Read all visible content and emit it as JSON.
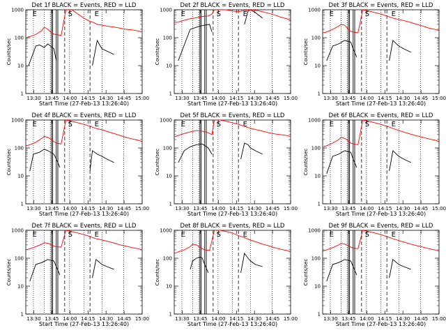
{
  "figure": {
    "xlabel": "Start Time (27-Feb-13 13:26:40)",
    "ylabel": "Counts/sec",
    "xticks": [
      "13:30",
      "13:45",
      "14:00",
      "14:15",
      "14:30",
      "14:45",
      "15:00"
    ],
    "yticks": [
      "1",
      "10",
      "100",
      "1000"
    ],
    "colors": {
      "events": "#000000",
      "lld": "#ff0000"
    }
  },
  "chart_data": [
    {
      "type": "line",
      "title": "Det 1f BLACK = Events, RED = LLD",
      "xlabel": "Start Time (27-Feb-13 13:26:40)",
      "ylabel": "Counts/sec",
      "ylog": true,
      "ylim": [
        1,
        1000
      ],
      "xlim_minutes": [
        -3.33,
        93.33
      ],
      "markers": [
        "E",
        "S",
        "E"
      ],
      "series": [
        {
          "name": "Events",
          "color": "#000000",
          "x": [
            -20,
            -8,
            -1,
            5,
            8,
            12,
            15,
            20,
            22,
            33,
            40,
            43,
            45,
            52,
            56,
            58,
            60,
            66,
            70
          ],
          "y": [
            null,
            null,
            10,
            50,
            55,
            45,
            60,
            40,
            15,
            null,
            null,
            null,
            null,
            10,
            80,
            55,
            40,
            30,
            25
          ]
        },
        {
          "name": "LLD",
          "color": "#ff0000",
          "x": [
            -3,
            0,
            5,
            10,
            12,
            15,
            18,
            20,
            22,
            26,
            30,
            35,
            40,
            45,
            50,
            53,
            56,
            60,
            64,
            70,
            75,
            80,
            85,
            90,
            93
          ],
          "y": [
            100,
            110,
            130,
            180,
            240,
            200,
            150,
            135,
            130,
            120,
            1000,
            1000,
            700,
            500,
            380,
            350,
            300,
            280,
            260,
            240,
            220,
            200,
            190,
            175,
            160
          ]
        }
      ]
    },
    {
      "type": "line",
      "title": "Det 2f BLACK = Events, RED = LLD",
      "xlabel": "Start Time (27-Feb-13 13:26:40)",
      "ylabel": "Counts/sec",
      "ylog": true,
      "ylim": [
        1,
        1000
      ],
      "xlim_minutes": [
        -3.33,
        93.33
      ],
      "markers": [
        "E",
        "S",
        "E"
      ],
      "series": [
        {
          "name": "Events",
          "color": "#000000",
          "x": [
            -20,
            -10,
            0,
            10,
            18,
            22,
            26,
            28,
            30,
            33,
            40,
            45,
            50,
            52,
            55,
            58,
            60,
            64,
            70
          ],
          "y": [
            null,
            null,
            15,
            200,
            260,
            280,
            300,
            160,
            null,
            null,
            null,
            null,
            null,
            null,
            300,
            900,
            1000,
            800,
            500
          ]
        },
        {
          "name": "LLD",
          "color": "#ff0000",
          "x": [
            -3,
            0,
            5,
            10,
            15,
            20,
            25,
            28,
            30,
            33,
            37,
            40,
            45,
            50,
            55,
            60,
            65,
            70,
            75,
            80,
            85,
            90,
            93
          ],
          "y": [
            350,
            360,
            420,
            480,
            520,
            580,
            600,
            700,
            1000,
            1000,
            1000,
            1000,
            900,
            850,
            950,
            1000,
            950,
            850,
            750,
            650,
            550,
            480,
            430
          ]
        }
      ]
    },
    {
      "type": "line",
      "title": "Det 3f BLACK = Events, RED = LLD",
      "xlabel": "Start Time (27-Feb-13 13:26:40)",
      "ylabel": "Counts/sec",
      "ylog": true,
      "ylim": [
        1,
        1000
      ],
      "xlim_minutes": [
        -3.33,
        93.33
      ],
      "markers": [
        "E",
        "S",
        "E"
      ],
      "series": [
        {
          "name": "Events",
          "color": "#000000",
          "x": [
            -20,
            0,
            5,
            10,
            15,
            20,
            22,
            25,
            40,
            48,
            52,
            55,
            58,
            60,
            64,
            70
          ],
          "y": [
            null,
            15,
            50,
            60,
            80,
            70,
            40,
            20,
            null,
            null,
            15,
            80,
            60,
            50,
            40,
            30
          ]
        },
        {
          "name": "LLD",
          "color": "#ff0000",
          "x": [
            -3,
            0,
            5,
            10,
            12,
            15,
            18,
            20,
            22,
            26,
            30,
            35,
            40,
            45,
            50,
            55,
            60,
            65,
            70,
            75,
            80,
            85,
            90,
            93
          ],
          "y": [
            150,
            160,
            200,
            260,
            300,
            280,
            200,
            170,
            160,
            150,
            1000,
            900,
            800,
            700,
            600,
            500,
            450,
            400,
            350,
            300,
            260,
            220,
            200,
            180
          ]
        }
      ]
    },
    {
      "type": "line",
      "title": "Det 4f BLACK = Events, RED = LLD",
      "xlabel": "Start Time (27-Feb-13 13:26:40)",
      "ylabel": "Counts/sec",
      "ylog": true,
      "ylim": [
        1,
        1000
      ],
      "xlim_minutes": [
        -3.33,
        93.33
      ],
      "markers": [
        "E",
        "S",
        "E"
      ],
      "series": [
        {
          "name": "Events",
          "color": "#000000",
          "x": [
            -20,
            0,
            3,
            8,
            12,
            15,
            20,
            22,
            25,
            40,
            48,
            50,
            52,
            56,
            60,
            64,
            70
          ],
          "y": [
            null,
            15,
            60,
            70,
            90,
            80,
            60,
            40,
            20,
            null,
            null,
            15,
            80,
            60,
            50,
            40,
            30
          ]
        },
        {
          "name": "LLD",
          "color": "#ff0000",
          "x": [
            -3,
            0,
            5,
            10,
            12,
            15,
            18,
            20,
            22,
            26,
            30,
            35,
            40,
            45,
            50,
            55,
            60,
            65,
            70,
            75,
            80,
            85,
            90,
            93
          ],
          "y": [
            120,
            130,
            160,
            220,
            260,
            240,
            200,
            170,
            150,
            140,
            1000,
            900,
            800,
            700,
            600,
            500,
            450,
            380,
            330,
            280,
            240,
            210,
            190,
            170
          ]
        }
      ]
    },
    {
      "type": "line",
      "title": "Det 5f BLACK = Events, RED = LLD",
      "xlabel": "Start Time (27-Feb-13 13:26:40)",
      "ylabel": "Counts/sec",
      "ylog": true,
      "ylim": [
        1,
        1000
      ],
      "xlim_minutes": [
        -3.33,
        93.33
      ],
      "markers": [
        "E",
        "S",
        "E"
      ],
      "series": [
        {
          "name": "Events",
          "color": "#000000",
          "x": [
            -20,
            0,
            5,
            10,
            15,
            20,
            25,
            28,
            30,
            48,
            52,
            55,
            58,
            60,
            64,
            70
          ],
          "y": [
            null,
            30,
            80,
            110,
            130,
            140,
            100,
            60,
            null,
            null,
            40,
            150,
            130,
            100,
            80,
            60
          ]
        },
        {
          "name": "LLD",
          "color": "#ff0000",
          "x": [
            -3,
            0,
            5,
            10,
            15,
            20,
            25,
            28,
            30,
            35,
            40,
            45,
            50,
            55,
            60,
            65,
            70,
            75,
            80,
            85,
            90,
            93
          ],
          "y": [
            250,
            280,
            330,
            380,
            420,
            400,
            350,
            300,
            1000,
            1000,
            900,
            800,
            700,
            600,
            500,
            450,
            400,
            350,
            320,
            300,
            280,
            260
          ]
        }
      ]
    },
    {
      "type": "line",
      "title": "Det 6f BLACK = Events, RED = LLD",
      "xlabel": "Start Time (27-Feb-13 13:26:40)",
      "ylabel": "Counts/sec",
      "ylog": true,
      "ylim": [
        1,
        1000
      ],
      "xlim_minutes": [
        -3.33,
        93.33
      ],
      "markers": [
        "E",
        "S",
        "E"
      ],
      "series": [
        {
          "name": "Events",
          "color": "#000000",
          "x": [
            -20,
            0,
            5,
            10,
            15,
            20,
            22,
            25,
            40,
            48,
            52,
            55,
            58,
            60,
            64,
            70
          ],
          "y": [
            null,
            12,
            50,
            60,
            80,
            70,
            40,
            20,
            null,
            null,
            15,
            80,
            60,
            50,
            40,
            30
          ]
        },
        {
          "name": "LLD",
          "color": "#ff0000",
          "x": [
            -3,
            0,
            5,
            10,
            12,
            15,
            18,
            20,
            22,
            26,
            30,
            35,
            40,
            45,
            50,
            55,
            60,
            65,
            70,
            75,
            80,
            85,
            90,
            93
          ],
          "y": [
            110,
            120,
            150,
            200,
            240,
            220,
            180,
            150,
            140,
            130,
            1000,
            900,
            800,
            700,
            600,
            500,
            420,
            360,
            310,
            270,
            240,
            210,
            190,
            170
          ]
        }
      ]
    },
    {
      "type": "line",
      "title": "Det 7f BLACK = Events, RED = LLD",
      "xlabel": "Start Time (27-Feb-13 13:26:40)",
      "ylabel": "Counts/sec",
      "ylog": true,
      "ylim": [
        1,
        1000
      ],
      "xlim_minutes": [
        -3.33,
        93.33
      ],
      "markers": [
        "E",
        "S",
        "E"
      ],
      "series": [
        {
          "name": "Events",
          "color": "#000000",
          "x": [
            -20,
            0,
            5,
            10,
            15,
            20,
            22,
            25,
            40,
            48,
            52,
            55,
            58,
            60,
            64,
            70
          ],
          "y": [
            null,
            15,
            60,
            70,
            90,
            80,
            50,
            25,
            null,
            null,
            20,
            90,
            70,
            60,
            50,
            40
          ]
        },
        {
          "name": "LLD",
          "color": "#ff0000",
          "x": [
            -3,
            0,
            5,
            10,
            12,
            15,
            18,
            20,
            22,
            26,
            30,
            35,
            40,
            45,
            50,
            55,
            60,
            65,
            70,
            75,
            80,
            85,
            90,
            93
          ],
          "y": [
            200,
            220,
            260,
            320,
            360,
            340,
            300,
            270,
            260,
            250,
            1000,
            900,
            800,
            700,
            600,
            500,
            450,
            400,
            350,
            300,
            270,
            240,
            220,
            200
          ]
        }
      ]
    },
    {
      "type": "line",
      "title": "Det 8f BLACK = Events, RED = LLD",
      "xlabel": "Start Time (27-Feb-13 13:26:40)",
      "ylabel": "Counts/sec",
      "ylog": true,
      "ylim": [
        1,
        1000
      ],
      "xlim_minutes": [
        -3.33,
        93.33
      ],
      "markers": [
        "E",
        "S",
        "E"
      ],
      "series": [
        {
          "name": "Events",
          "color": "#000000",
          "x": [
            -20,
            10,
            12,
            15,
            18,
            20,
            22,
            25,
            40,
            48,
            52,
            55,
            58,
            60,
            64,
            70
          ],
          "y": [
            null,
            40,
            80,
            100,
            110,
            100,
            60,
            30,
            null,
            null,
            30,
            150,
            100,
            80,
            60,
            50
          ]
        },
        {
          "name": "LLD",
          "color": "#ff0000",
          "x": [
            -3,
            0,
            5,
            10,
            12,
            15,
            18,
            20,
            22,
            26,
            30,
            35,
            40,
            45,
            50,
            55,
            60,
            65,
            70,
            75,
            80,
            85,
            90,
            93
          ],
          "y": [
            150,
            170,
            200,
            260,
            320,
            300,
            250,
            220,
            200,
            190,
            1000,
            1000,
            900,
            800,
            650,
            550,
            450,
            380,
            320,
            280,
            240,
            210,
            190,
            170
          ]
        }
      ]
    },
    {
      "type": "line",
      "title": "Det 9f BLACK = Events, RED = LLD",
      "xlabel": "Start Time (27-Feb-13 13:26:40)",
      "ylabel": "Counts/sec",
      "ylog": true,
      "ylim": [
        1,
        1000
      ],
      "xlim_minutes": [
        -3.33,
        93.33
      ],
      "markers": [
        "E",
        "S",
        "E"
      ],
      "series": [
        {
          "name": "Events",
          "color": "#000000",
          "x": [
            -20,
            0,
            5,
            10,
            15,
            20,
            22,
            25,
            40,
            48,
            52,
            55,
            58,
            60,
            64,
            70
          ],
          "y": [
            null,
            15,
            60,
            70,
            90,
            80,
            50,
            25,
            null,
            null,
            20,
            90,
            70,
            60,
            50,
            40
          ]
        },
        {
          "name": "LLD",
          "color": "#ff0000",
          "x": [
            -3,
            0,
            5,
            10,
            12,
            15,
            18,
            20,
            22,
            26,
            30,
            35,
            40,
            45,
            50,
            55,
            60,
            65,
            70,
            75,
            80,
            85,
            90,
            93
          ],
          "y": [
            180,
            200,
            240,
            300,
            340,
            320,
            280,
            250,
            230,
            220,
            1000,
            900,
            800,
            700,
            600,
            500,
            430,
            370,
            320,
            280,
            250,
            220,
            200,
            180
          ]
        }
      ]
    }
  ]
}
